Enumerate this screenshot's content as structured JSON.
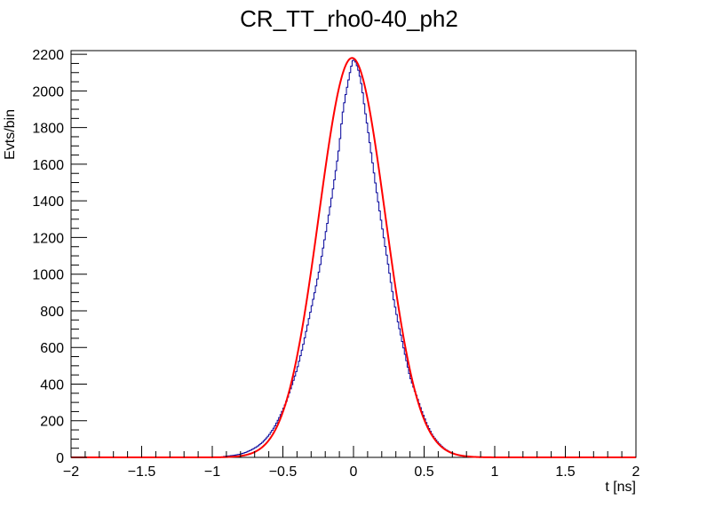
{
  "chart_data": {
    "type": "histogram",
    "title": "CR_TT_rho0-40_ph2",
    "xlabel": "t [ns]",
    "ylabel": "Evts/bin",
    "xlim": [
      -2,
      2
    ],
    "ylim": [
      0,
      2220
    ],
    "grid": false,
    "x_ticks": [
      "−2",
      "−1.5",
      "−1",
      "−0.5",
      "0",
      "0.5",
      "1",
      "1.5",
      "2"
    ],
    "y_ticks": [
      "0",
      "200",
      "400",
      "600",
      "800",
      "1000",
      "1200",
      "1400",
      "1600",
      "1800",
      "2000",
      "2200"
    ],
    "histogram": {
      "color": "#000099",
      "bin_width": 0.01,
      "bins": [
        [
          -0.92,
          5
        ],
        [
          -0.88,
          8
        ],
        [
          -0.84,
          12
        ],
        [
          -0.8,
          18
        ],
        [
          -0.76,
          28
        ],
        [
          -0.72,
          42
        ],
        [
          -0.68,
          60
        ],
        [
          -0.64,
          85
        ],
        [
          -0.6,
          120
        ],
        [
          -0.56,
          165
        ],
        [
          -0.52,
          225
        ],
        [
          -0.48,
          295
        ],
        [
          -0.44,
          385
        ],
        [
          -0.4,
          480
        ],
        [
          -0.36,
          600
        ],
        [
          -0.32,
          740
        ],
        [
          -0.28,
          880
        ],
        [
          -0.24,
          1030
        ],
        [
          -0.2,
          1210
        ],
        [
          -0.16,
          1390
        ],
        [
          -0.12,
          1590
        ],
        [
          -0.1,
          1700
        ],
        [
          -0.08,
          1860
        ],
        [
          -0.06,
          1960
        ],
        [
          -0.04,
          2040
        ],
        [
          -0.02,
          2120
        ],
        [
          0.0,
          2180
        ],
        [
          0.02,
          2150
        ],
        [
          0.04,
          2100
        ],
        [
          0.06,
          2020
        ],
        [
          0.08,
          1900
        ],
        [
          0.1,
          1800
        ],
        [
          0.12,
          1690
        ],
        [
          0.16,
          1470
        ],
        [
          0.2,
          1270
        ],
        [
          0.24,
          1080
        ],
        [
          0.28,
          880
        ],
        [
          0.32,
          720
        ],
        [
          0.36,
          580
        ],
        [
          0.4,
          440
        ],
        [
          0.44,
          350
        ],
        [
          0.48,
          260
        ],
        [
          0.52,
          180
        ],
        [
          0.56,
          120
        ],
        [
          0.6,
          80
        ],
        [
          0.64,
          50
        ],
        [
          0.68,
          30
        ],
        [
          0.72,
          18
        ],
        [
          0.76,
          10
        ],
        [
          0.8,
          6
        ],
        [
          0.84,
          4
        ],
        [
          0.88,
          2
        ]
      ]
    },
    "fit": {
      "type": "gaussian",
      "color": "#ff0000",
      "amplitude": 2180,
      "mean": -0.01,
      "sigma": 0.235,
      "x_range": [
        -2,
        2
      ]
    }
  }
}
